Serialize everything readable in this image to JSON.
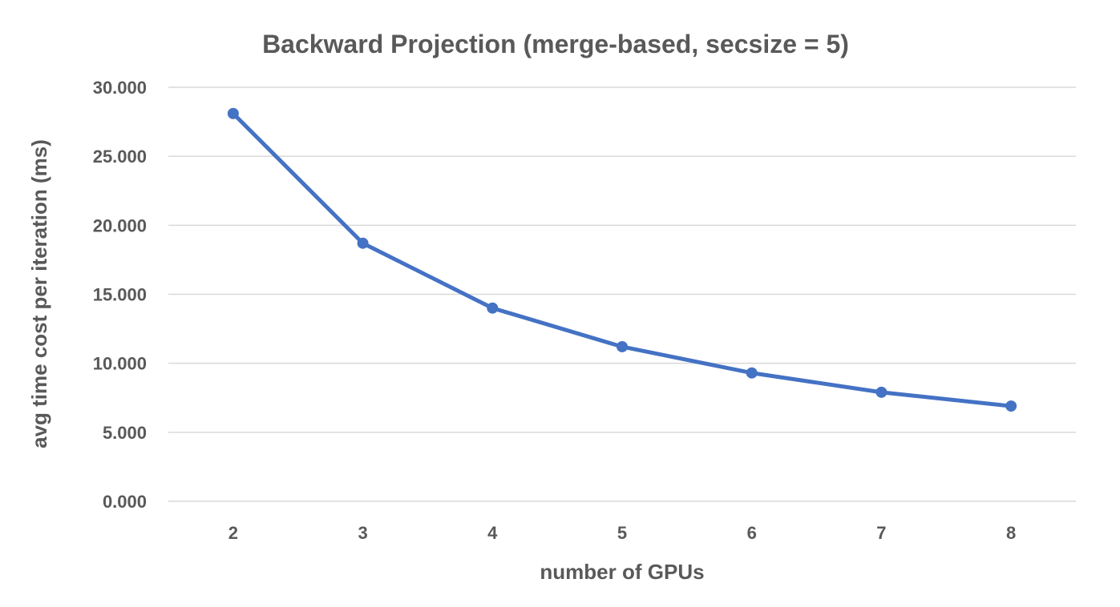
{
  "chart_data": {
    "type": "line",
    "title": "Backward Projection (merge-based, secsize = 5)",
    "xlabel": "number of GPUs",
    "ylabel": "avg time cost per iteration (ms)",
    "categories": [
      "2",
      "3",
      "4",
      "5",
      "6",
      "7",
      "8"
    ],
    "ylim": [
      0,
      30
    ],
    "yticks": [
      "0.000",
      "5.000",
      "10.000",
      "15.000",
      "20.000",
      "25.000",
      "30.000"
    ],
    "grid": true,
    "legend": "none",
    "series": [
      {
        "color": "#4472c4",
        "values": [
          28.1,
          18.7,
          14.0,
          11.2,
          9.3,
          7.9,
          6.9
        ]
      }
    ]
  }
}
